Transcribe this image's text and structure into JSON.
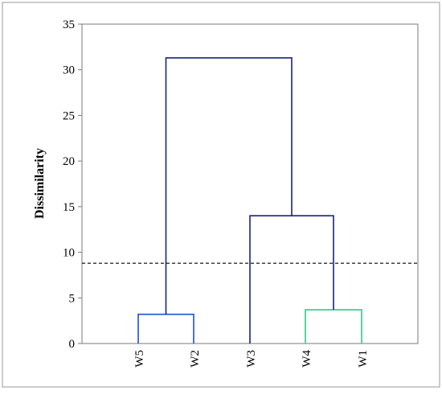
{
  "chart_data": {
    "type": "dendrogram",
    "ylabel": "Dissimilarity",
    "ylim": [
      0,
      35
    ],
    "yticks": [
      0,
      5,
      10,
      15,
      20,
      25,
      30,
      35
    ],
    "leaves": [
      "W5",
      "W2",
      "W3",
      "W4",
      "W1"
    ],
    "merges": [
      {
        "left": "W5",
        "right": "W2",
        "height": 3.2,
        "color": "#1f4fd1"
      },
      {
        "left": "W4",
        "right": "W1",
        "height": 3.7,
        "color": "#2ec98a"
      },
      {
        "left": "W3",
        "right": "W4+W1",
        "height": 14.0,
        "color": "#1a237e"
      },
      {
        "left": "W5+W2",
        "right": "W3+W4+W1",
        "height": 31.3,
        "color": "#1a237e"
      }
    ],
    "cut_line": {
      "value": 8.8,
      "style": "dashed",
      "color": "#000000"
    },
    "grid": false
  }
}
